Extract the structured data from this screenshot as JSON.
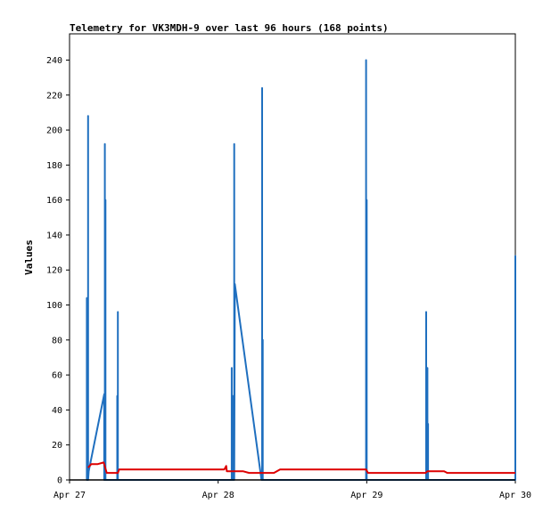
{
  "chart_data": {
    "type": "line",
    "title": "Telemetry for VK3MDH-9 over last 96 hours (168 points)",
    "xlabel": "",
    "ylabel": "Values",
    "ylim": [
      0,
      255
    ],
    "xlim": [
      0,
      72
    ],
    "x_unit": "hours since Apr 27 00:00",
    "y_ticks": [
      0,
      20,
      40,
      60,
      80,
      100,
      120,
      140,
      160,
      180,
      200,
      220,
      240
    ],
    "x_ticks": [
      {
        "x": 0,
        "label": "Apr 27"
      },
      {
        "x": 24,
        "label": "Apr 28"
      },
      {
        "x": 48,
        "label": "Apr 29"
      },
      {
        "x": 72,
        "label": "Apr 30"
      }
    ],
    "grid": false,
    "series": [
      {
        "color": "#1f6fbf",
        "points": [
          [
            2.8,
            0
          ],
          [
            2.8,
            104
          ],
          [
            2.8,
            0
          ],
          [
            3.0,
            0
          ],
          [
            3.0,
            208
          ],
          [
            3.0,
            0
          ],
          [
            3.1,
            5
          ],
          [
            5.6,
            49
          ],
          [
            5.6,
            0
          ],
          [
            5.7,
            0
          ],
          [
            5.7,
            192
          ],
          [
            5.7,
            0
          ],
          [
            5.8,
            0
          ],
          [
            5.8,
            160
          ],
          [
            5.8,
            0
          ],
          [
            7.7,
            0
          ],
          [
            7.7,
            48
          ],
          [
            7.7,
            0
          ],
          [
            7.8,
            0
          ],
          [
            7.8,
            96
          ],
          [
            7.8,
            0
          ],
          [
            26.2,
            0
          ],
          [
            26.2,
            64
          ],
          [
            26.2,
            0
          ],
          [
            26.4,
            0
          ],
          [
            26.4,
            48
          ],
          [
            26.4,
            0
          ],
          [
            26.6,
            0
          ],
          [
            26.6,
            192
          ],
          [
            26.6,
            0
          ],
          [
            26.7,
            112
          ],
          [
            31.0,
            0
          ],
          [
            31.1,
            0
          ],
          [
            31.1,
            224
          ],
          [
            31.1,
            0
          ],
          [
            31.2,
            0
          ],
          [
            31.2,
            80
          ],
          [
            31.2,
            0
          ],
          [
            47.9,
            0
          ],
          [
            47.9,
            240
          ],
          [
            47.9,
            0
          ],
          [
            48.0,
            0
          ],
          [
            48.0,
            160
          ],
          [
            48.0,
            0
          ],
          [
            57.6,
            0
          ],
          [
            57.6,
            96
          ],
          [
            57.6,
            0
          ],
          [
            57.8,
            0
          ],
          [
            57.8,
            64
          ],
          [
            57.8,
            0
          ],
          [
            57.9,
            0
          ],
          [
            57.9,
            32
          ],
          [
            57.9,
            0
          ],
          [
            72.0,
            0
          ],
          [
            72.0,
            128
          ],
          [
            72.0,
            0
          ]
        ]
      },
      {
        "color": "#dd0000",
        "points": [
          [
            3.0,
            7
          ],
          [
            3.5,
            9
          ],
          [
            4.5,
            9
          ],
          [
            5.5,
            10
          ],
          [
            5.6,
            9
          ],
          [
            6.0,
            4
          ],
          [
            7.8,
            4
          ],
          [
            8.0,
            6
          ],
          [
            25.0,
            6
          ],
          [
            25.3,
            8
          ],
          [
            25.4,
            5
          ],
          [
            28.0,
            5
          ],
          [
            29.0,
            4
          ],
          [
            33.0,
            4
          ],
          [
            34.0,
            6
          ],
          [
            47.9,
            6
          ],
          [
            48.2,
            4
          ],
          [
            57.5,
            4
          ],
          [
            57.8,
            5
          ],
          [
            60.5,
            5
          ],
          [
            61.0,
            4
          ],
          [
            68.5,
            4
          ],
          [
            69.0,
            4
          ],
          [
            72.0,
            4
          ]
        ]
      }
    ]
  }
}
